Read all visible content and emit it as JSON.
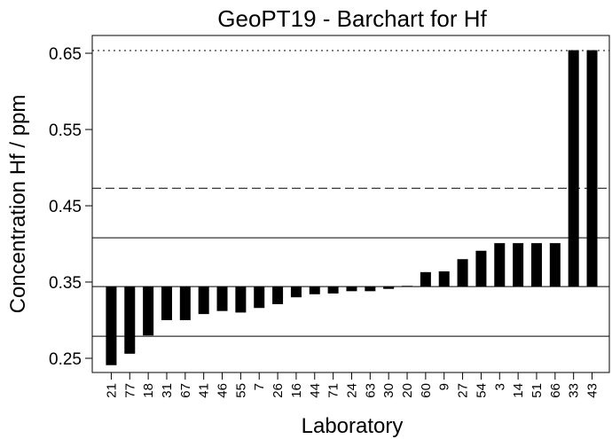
{
  "chart_data": {
    "type": "bar",
    "title": "GeoPT19 - Barchart for Hf",
    "x_label": "Laboratory",
    "y_label": "Concentration Hf / ppm",
    "categories": [
      "21",
      "77",
      "18",
      "31",
      "67",
      "41",
      "46",
      "55",
      "7",
      "26",
      "16",
      "44",
      "71",
      "24",
      "63",
      "30",
      "20",
      "60",
      "9",
      "27",
      "54",
      "3",
      "14",
      "51",
      "66",
      "33",
      "43"
    ],
    "values": [
      0.241,
      0.256,
      0.28,
      0.3,
      0.3,
      0.308,
      0.312,
      0.31,
      0.316,
      0.321,
      0.33,
      0.334,
      0.335,
      0.338,
      0.338,
      0.341,
      0.345,
      0.363,
      0.364,
      0.38,
      0.391,
      0.401,
      0.401,
      0.401,
      0.401,
      0.654,
      0.654
    ],
    "color": "#000000",
    "assigned_value": 0.344,
    "reference_lines": [
      {
        "value": 0.408,
        "style": "solid"
      },
      {
        "value": 0.279,
        "style": "solid"
      },
      {
        "value": 0.473,
        "style": "dashed"
      },
      {
        "value": 0.6535,
        "style": "dotted"
      }
    ],
    "ylim": [
      0.2314,
      0.6733
    ],
    "yticks": [
      0.25,
      0.35,
      0.45,
      0.55,
      0.65
    ]
  }
}
